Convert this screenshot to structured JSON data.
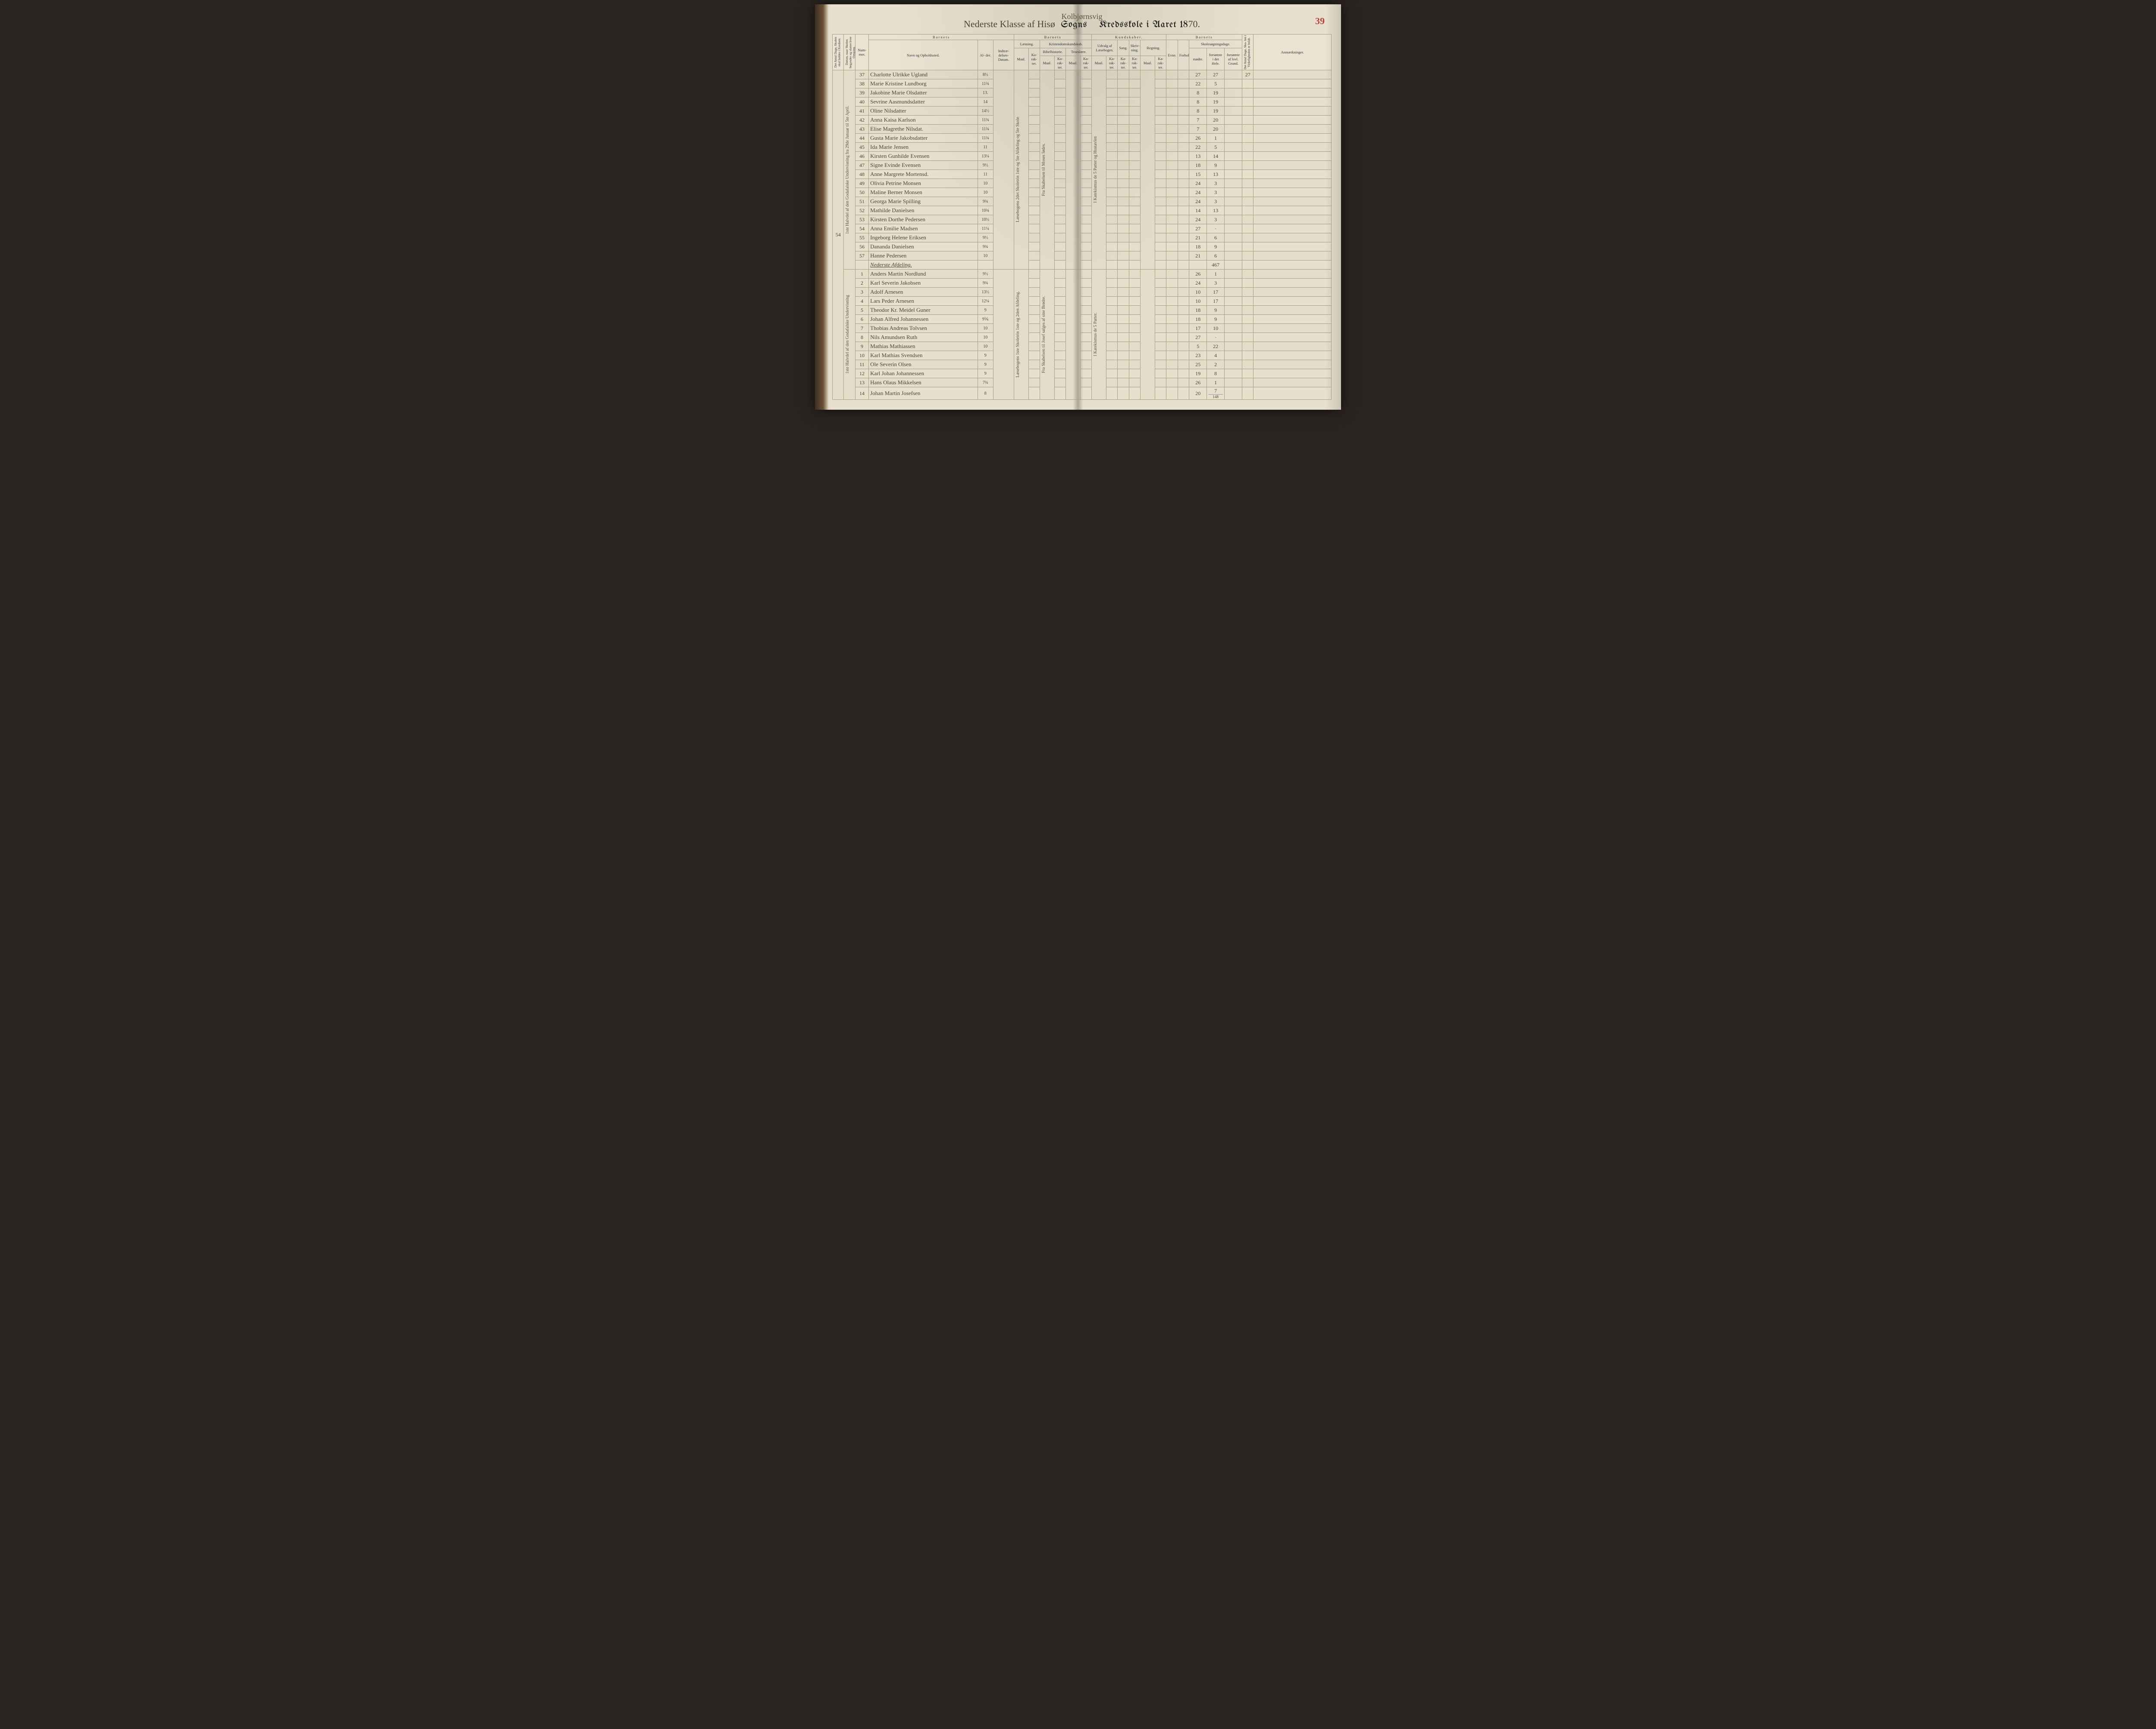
{
  "page_number": "39",
  "super_title": "Kolbjørnsvig",
  "title": {
    "prefix_script": "Nederste Klasse af Hisø",
    "sogns": "Sogns",
    "kreds": "Kredsskole i Aaret 18",
    "year_suffix": "70."
  },
  "headers": {
    "antal_dage": "Det Antal Dage, Skolen skal holdes i Kredsen.",
    "datum_naar": "Datum, naar Skolen begynder og slutter hver Omgang.",
    "nummer": "Num-\nmer.",
    "barnets": "Barnets",
    "navn": "Navn og Opholdssted.",
    "alder": "Al-\nder.",
    "indtr": "Indtræ-\ndelses-\nDatum.",
    "barnets2": "Barnets",
    "laesning": "Læsning.",
    "kristen": "Kristendomskundskab.",
    "bibel": "Bibelhistorie.",
    "troes": "Troeslære.",
    "kundskaber": "Kundskaber.",
    "udvalg": "Udvalg af\nLæsebogen.",
    "sang": "Sang.",
    "skriv": "Skriv-\nning.",
    "regning": "Regning.",
    "maal": "Maal.",
    "kar": "Ka-\nrak-\nter.",
    "barnets3": "Barnets",
    "evne": "Evne.",
    "forhold": "Forhold.",
    "skolesog": "Skolesøgningsdage.",
    "modte": "mødte.",
    "fors_hele": "forsømte i\ndet Hele.",
    "fors_grund": "forsømte af\nlovl. Grund.",
    "antal_virk": "Det Antal Dage, Sko-\nlen i Virkeligheden\ner holdt.",
    "anm": "Anmærkninger."
  },
  "left_margin_num": "54",
  "rows": [
    {
      "n": "37",
      "name": "Charlotte Ulrikke Ugland",
      "age": "8½",
      "m": "27",
      "f": "27",
      "a": "27"
    },
    {
      "n": "38",
      "name": "Marie Kristine Lundborg",
      "age": "11¾",
      "m": "22",
      "f": "5",
      "a": ""
    },
    {
      "n": "39",
      "name": "Jakobine Marie Olsdatter",
      "age": "13.",
      "m": "8",
      "f": "19",
      "a": ""
    },
    {
      "n": "40",
      "name": "Sevrine Aasmundsdatter",
      "age": "14",
      "m": "8",
      "f": "19",
      "a": ""
    },
    {
      "n": "41",
      "name": "Oline Nilsdatter",
      "age": "14½",
      "m": "8",
      "f": "19",
      "a": ""
    },
    {
      "n": "42",
      "name": "Anna Kaisa Karlson",
      "age": "11¾",
      "m": "7",
      "f": "20",
      "a": ""
    },
    {
      "n": "43",
      "name": "Elise Magrethe Nilsdat.",
      "age": "11¾",
      "m": "7",
      "f": "20",
      "a": ""
    },
    {
      "n": "44",
      "name": "Gusta Marie Jakobsdatter",
      "age": "11¾",
      "m": "26",
      "f": "1",
      "a": ""
    },
    {
      "n": "45",
      "name": "Ida Marie Jensen",
      "age": "11",
      "m": "22",
      "f": "5",
      "a": ""
    },
    {
      "n": "46",
      "name": "Kirsten Gunhilde Evensen",
      "age": "13¼",
      "m": "13",
      "f": "14",
      "a": ""
    },
    {
      "n": "47",
      "name": "Signe Evinde Evensen",
      "age": "9½",
      "m": "18",
      "f": "9",
      "a": ""
    },
    {
      "n": "48",
      "name": "Anne Margrete Mortensd.",
      "age": "11",
      "m": "15",
      "f": "13",
      "a": ""
    },
    {
      "n": "49",
      "name": "Olivia Petrine Monsen",
      "age": "10",
      "m": "24",
      "f": "3",
      "a": ""
    },
    {
      "n": "50",
      "name": "Maline Berner Monsen",
      "age": "10",
      "m": "24",
      "f": "3",
      "a": ""
    },
    {
      "n": "51",
      "name": "Georga Marie Spilling",
      "age": "9¾",
      "m": "24",
      "f": "3",
      "a": ""
    },
    {
      "n": "52",
      "name": "Mathilde Danielsen",
      "age": "10¾",
      "m": "14",
      "f": "13",
      "a": ""
    },
    {
      "n": "53",
      "name": "Kirsten Dorthe Pedersen",
      "age": "10½",
      "m": "24",
      "f": "3",
      "a": ""
    },
    {
      "n": "54",
      "name": "Anna Emilie Madsen",
      "age": "11¼",
      "m": "27",
      "f": "·",
      "a": ""
    },
    {
      "n": "55",
      "name": "Ingeborg Helene Eriksen",
      "age": "9½",
      "m": "21",
      "f": "6",
      "a": ""
    },
    {
      "n": "56",
      "name": "Dananda Danielsen",
      "age": "9¾",
      "m": "18",
      "f": "9",
      "a": ""
    },
    {
      "n": "57",
      "name": "Hanne Pedersen",
      "age": "10",
      "m": "21",
      "f": "6",
      "a": ""
    }
  ],
  "section_label": "Nederste Afdeling.",
  "section_total": "467",
  "rows2": [
    {
      "n": "1",
      "name": "Anders Martin Nordlund",
      "age": "9½",
      "m": "26",
      "f": "1",
      "a": ""
    },
    {
      "n": "2",
      "name": "Karl Severin Jakobsen",
      "age": "9¾",
      "m": "24",
      "f": "3",
      "a": ""
    },
    {
      "n": "3",
      "name": "Adolf Arnesen",
      "age": "13½",
      "m": "10",
      "f": "17",
      "a": ""
    },
    {
      "n": "4",
      "name": "Lars Peder Arnesen",
      "age": "12¼",
      "m": "10",
      "f": "17",
      "a": ""
    },
    {
      "n": "5",
      "name": "Theodor Kr. Meidel Guner",
      "age": "9",
      "m": "18",
      "f": "9",
      "a": ""
    },
    {
      "n": "6",
      "name": "Johan Alfred Johannessen",
      "age": "9⅙",
      "m": "18",
      "f": "9",
      "a": ""
    },
    {
      "n": "7",
      "name": "Thobias Andreas Tolvsen",
      "age": "10",
      "m": "17",
      "f": "10",
      "a": ""
    },
    {
      "n": "8",
      "name": "Nils Amundsen Ruth",
      "age": "10",
      "m": "27",
      "f": "·",
      "a": ""
    },
    {
      "n": "9",
      "name": "Mathias Mathiassen",
      "age": "10",
      "m": "5",
      "f": "22",
      "a": ""
    },
    {
      "n": "10",
      "name": "Karl Mathias Svendsen",
      "age": "9",
      "m": "23",
      "f": "4",
      "a": ""
    },
    {
      "n": "11",
      "name": "Ole Severin Olsen",
      "age": "9",
      "m": "25",
      "f": "2",
      "a": ""
    },
    {
      "n": "12",
      "name": "Karl Johan Johannessen",
      "age": "9",
      "m": "19",
      "f": "8",
      "a": ""
    },
    {
      "n": "13",
      "name": "Hans Olaus Mikkelsen",
      "age": "7¾",
      "m": "26",
      "f": "1",
      "a": ""
    },
    {
      "n": "14",
      "name": "Johan Martin Josefsen",
      "age": "8",
      "m": "20",
      "f": "7",
      "a": ""
    }
  ],
  "bottom_total": "148",
  "vertical_notes": {
    "indtr": "1ste Halvdel af den Godafalske Undervisning fra 29de Januar til 5te April.",
    "laes_maal": "Læsebogens 1ste Skoletrin 1ste og 2den Afdeling.",
    "bibel_maal": "Fra Skabelsen til Josef salges af sine Brødre.",
    "udvalg_maal": "I Katekismus de 5 Parter.",
    "indtr2": "1ste Halvdel af den Godafalske Undervisning",
    "laes_maal_upper": "Læsebogens 2det Skoletrin 1ste og 5te Afdeling og 5te Skole",
    "bibel_maal_upper": "Fra Skabelsen til Moses fødes.",
    "udvalg_maal_upper": "I Katekismus de 5 Parter og Hustavlen"
  }
}
